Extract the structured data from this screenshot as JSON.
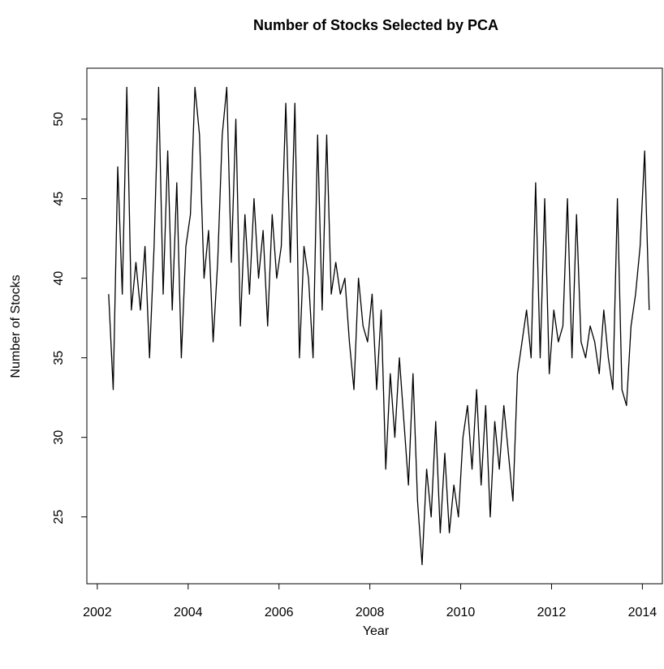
{
  "chart_data": {
    "type": "line",
    "title": "Number of Stocks Selected by PCA",
    "xlabel": "Year",
    "ylabel": "Number of Stocks",
    "color": "#000000",
    "x": [
      2002.25,
      2002.35,
      2002.45,
      2002.55,
      2002.65,
      2002.75,
      2002.85,
      2002.95,
      2003.05,
      2003.15,
      2003.25,
      2003.35,
      2003.45,
      2003.55,
      2003.65,
      2003.75,
      2003.85,
      2003.95,
      2004.05,
      2004.15,
      2004.25,
      2004.35,
      2004.45,
      2004.55,
      2004.65,
      2004.75,
      2004.85,
      2004.95,
      2005.05,
      2005.15,
      2005.25,
      2005.35,
      2005.45,
      2005.55,
      2005.65,
      2005.75,
      2005.85,
      2005.95,
      2006.05,
      2006.15,
      2006.25,
      2006.35,
      2006.45,
      2006.55,
      2006.65,
      2006.75,
      2006.85,
      2006.95,
      2007.05,
      2007.15,
      2007.25,
      2007.35,
      2007.45,
      2007.55,
      2007.65,
      2007.75,
      2007.85,
      2007.95,
      2008.05,
      2008.15,
      2008.25,
      2008.35,
      2008.45,
      2008.55,
      2008.65,
      2008.75,
      2008.85,
      2008.95,
      2009.05,
      2009.15,
      2009.25,
      2009.35,
      2009.45,
      2009.55,
      2009.65,
      2009.75,
      2009.85,
      2009.95,
      2010.05,
      2010.15,
      2010.25,
      2010.35,
      2010.45,
      2010.55,
      2010.65,
      2010.75,
      2010.85,
      2010.95,
      2011.05,
      2011.15,
      2011.25,
      2011.35,
      2011.45,
      2011.55,
      2011.65,
      2011.75,
      2011.85,
      2011.95,
      2012.05,
      2012.15,
      2012.25,
      2012.35,
      2012.45,
      2012.55,
      2012.65,
      2012.75,
      2012.85,
      2012.95,
      2013.05,
      2013.15,
      2013.25,
      2013.35,
      2013.45,
      2013.55,
      2013.65,
      2013.75,
      2013.85,
      2013.95,
      2014.05,
      2014.15
    ],
    "values": [
      39,
      33,
      47,
      39,
      52,
      38,
      41,
      38,
      42,
      35,
      42,
      52,
      39,
      48,
      38,
      46,
      35,
      42,
      44,
      52,
      49,
      40,
      43,
      36,
      41,
      49,
      52,
      41,
      50,
      37,
      44,
      39,
      45,
      40,
      43,
      37,
      44,
      40,
      42,
      51,
      41,
      51,
      35,
      42,
      40,
      35,
      49,
      38,
      49,
      39,
      41,
      39,
      40,
      36,
      33,
      40,
      37,
      36,
      39,
      33,
      38,
      28,
      34,
      30,
      35,
      31,
      27,
      34,
      26,
      22,
      28,
      25,
      31,
      24,
      29,
      24,
      27,
      25,
      30,
      32,
      28,
      33,
      27,
      32,
      25,
      31,
      28,
      32,
      29,
      26,
      34,
      36,
      38,
      35,
      46,
      35,
      45,
      34,
      38,
      36,
      37,
      45,
      35,
      44,
      36,
      35,
      37,
      36,
      34,
      38,
      35,
      33,
      45,
      33,
      32,
      37,
      39,
      42,
      48,
      38
    ],
    "xlim": [
      2001.77,
      2014.44
    ],
    "ylim": [
      20.8,
      53.2
    ],
    "xticks": [
      2002,
      2004,
      2006,
      2008,
      2010,
      2012,
      2014
    ],
    "yticks": [
      25,
      30,
      35,
      40,
      45,
      50
    ]
  }
}
